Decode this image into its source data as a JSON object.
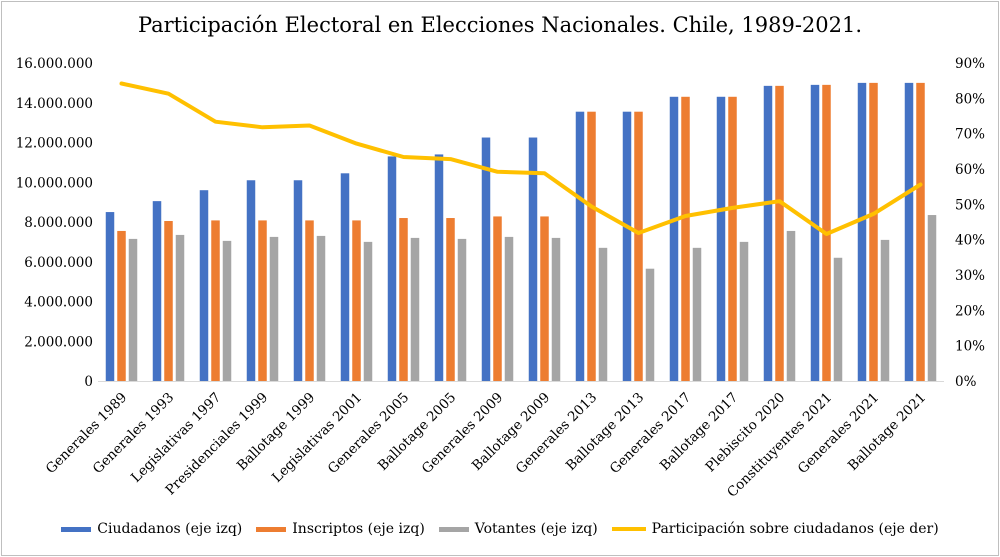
{
  "chart_data": {
    "type": "bar",
    "title": "Participación Electoral en Elecciones Nacionales. Chile, 1989-2021.",
    "categories": [
      "Generales 1989",
      "Generales 1993",
      "Legislativas 1997",
      "Presidenciales 1999",
      "Ballotage 1999",
      "Legislativas 2001",
      "Generales 2005",
      "Ballotage 2005",
      "Generales 2009",
      "Ballotage 2009",
      "Generales 2013",
      "Ballotage 2013",
      "Generales 2017",
      "Ballotage 2017",
      "Plebiscito 2020",
      "Constituyentes 2021",
      "Generales 2021",
      "Ballotage 2021"
    ],
    "y_left": {
      "min": 0,
      "max": 16000000,
      "step": 2000000,
      "tick_labels": [
        "0",
        "2.000.000",
        "4.000.000",
        "6.000.000",
        "8.000.000",
        "10.000.000",
        "12.000.000",
        "14.000.000",
        "16.000.000"
      ]
    },
    "y_right": {
      "min": 0,
      "max": 90,
      "step": 10,
      "tick_labels": [
        "0%",
        "10%",
        "20%",
        "30%",
        "40%",
        "50%",
        "60%",
        "70%",
        "80%",
        "90%"
      ]
    },
    "series": [
      {
        "name": "Ciudadanos (eje izq)",
        "kind": "bar",
        "axis": "left",
        "color": "#4472c4",
        "values": [
          8500000,
          9050000,
          9600000,
          10100000,
          10100000,
          10450000,
          11300000,
          11400000,
          12250000,
          12250000,
          13550000,
          13550000,
          14300000,
          14300000,
          14850000,
          14900000,
          15000000,
          15000000
        ]
      },
      {
        "name": "Inscriptos (eje izq)",
        "kind": "bar",
        "axis": "left",
        "color": "#ed7d31",
        "values": [
          7550000,
          8050000,
          8080000,
          8080000,
          8080000,
          8080000,
          8200000,
          8200000,
          8280000,
          8280000,
          13550000,
          13550000,
          14300000,
          14300000,
          14850000,
          14900000,
          15000000,
          15000000
        ]
      },
      {
        "name": "Votantes (eje izq)",
        "kind": "bar",
        "axis": "left",
        "color": "#a5a5a5",
        "values": [
          7150000,
          7350000,
          7050000,
          7250000,
          7300000,
          7000000,
          7200000,
          7150000,
          7250000,
          7200000,
          6700000,
          5650000,
          6700000,
          7000000,
          7550000,
          6200000,
          7100000,
          8350000
        ]
      },
      {
        "name": "Participación sobre ciudadanos (eje der)",
        "kind": "line",
        "axis": "right",
        "color": "#ffc000",
        "values": [
          84.2,
          81.3,
          73.4,
          71.8,
          72.3,
          67.2,
          63.4,
          62.8,
          59.2,
          58.8,
          49.4,
          41.9,
          46.7,
          49.0,
          50.9,
          41.6,
          47.3,
          55.6
        ]
      }
    ],
    "legend_position": "bottom",
    "grid": false
  }
}
